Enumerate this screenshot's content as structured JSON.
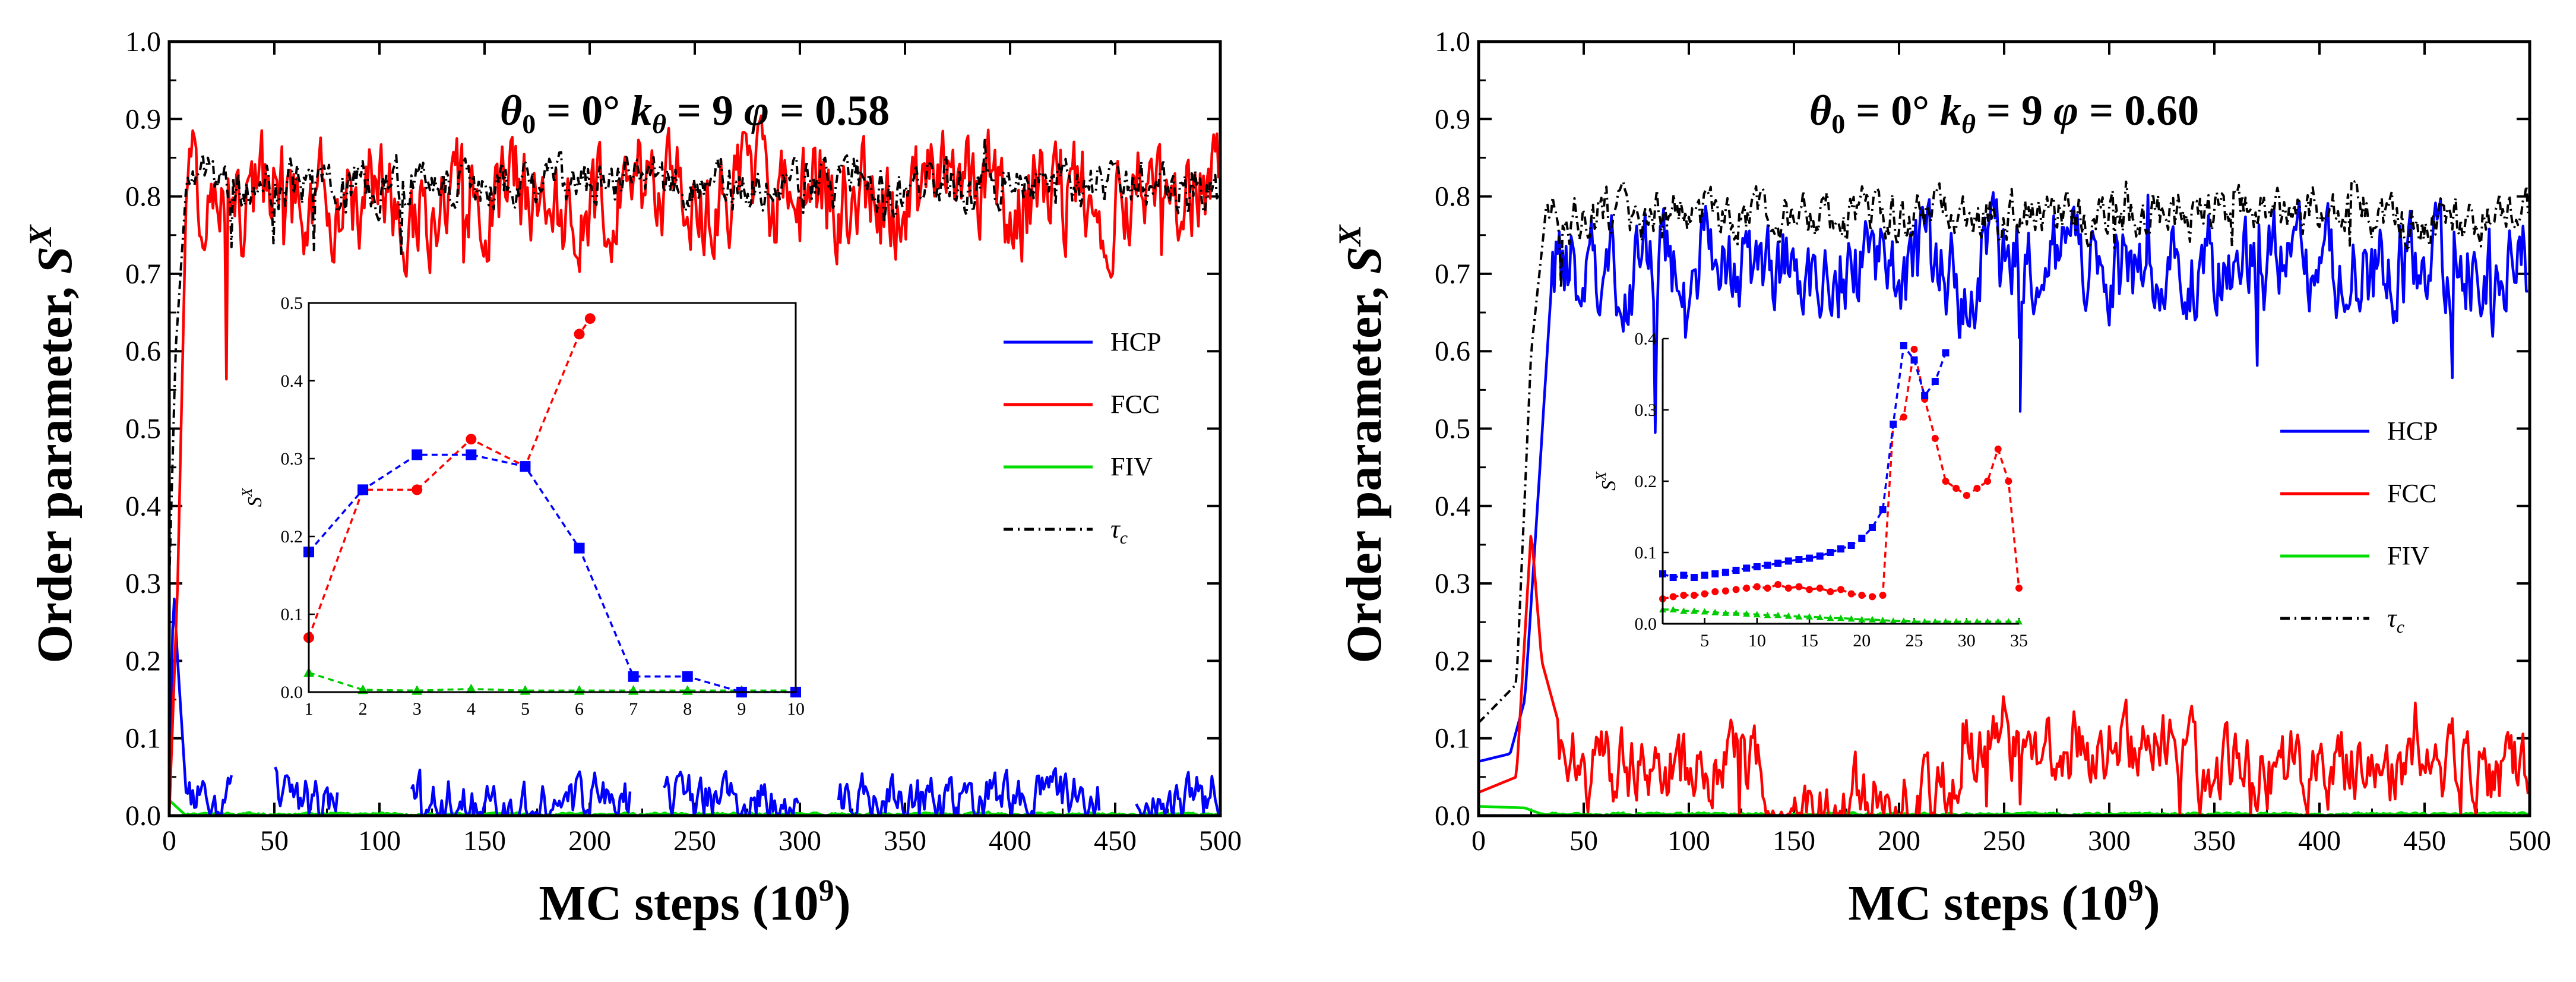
{
  "chart_data": [
    {
      "type": "line",
      "panel": "left",
      "title_parts": {
        "theta": "θ",
        "theta_sub": "0",
        "theta_eq": " = 0°",
        "k": "k",
        "k_sub": "θ",
        "k_eq": " = 9",
        "phi": "φ",
        "phi_eq": " = 0.58"
      },
      "xlabel": "MC steps (10",
      "xlabel_sup": "9",
      "xlabel_end": ")",
      "ylabel": "Order parameter, ",
      "ylabel_s": "S",
      "ylabel_sup": "X",
      "xlim": [
        0,
        500
      ],
      "ylim": [
        0,
        1.0
      ],
      "xticks": [
        "0",
        "50",
        "100",
        "150",
        "200",
        "250",
        "300",
        "350",
        "400",
        "450",
        "500"
      ],
      "yticks": [
        "0.0",
        "0.1",
        "0.2",
        "0.3",
        "0.4",
        "0.5",
        "0.6",
        "0.7",
        "0.8",
        "0.9",
        "1.0"
      ],
      "legend": [
        {
          "label": "HCP",
          "color": "#0000ff",
          "style": "solid"
        },
        {
          "label": "FCC",
          "color": "#ff0000",
          "style": "solid"
        },
        {
          "label": "FIV",
          "color": "#00dd00",
          "style": "solid"
        },
        {
          "label": "τ",
          "sub": "c",
          "color": "#000000",
          "style": "dashdot"
        }
      ],
      "series_profile": {
        "HCP": {
          "early": [
            [
              0,
              0.0
            ],
            [
              2,
              0.3
            ],
            [
              4,
              0.2
            ],
            [
              8,
              0.03
            ]
          ],
          "plateau": 0.02,
          "noise": 0.04,
          "gaps": [
            [
              30,
              50
            ],
            [
              80,
              115
            ],
            [
              220,
              235
            ],
            [
              300,
              318
            ],
            [
              443,
              460
            ]
          ]
        },
        "FCC": {
          "early": [
            [
              0,
              0.0
            ],
            [
              4,
              0.3
            ],
            [
              8,
              0.79
            ]
          ],
          "plateau": 0.8,
          "noise": 0.09
        },
        "FIV": {
          "early": [
            [
              0,
              0.02
            ],
            [
              8,
              0.0
            ]
          ],
          "plateau": 0.002,
          "noise": 0.002
        },
        "tau": {
          "early": [
            [
              0,
              0.3
            ],
            [
              3,
              0.6
            ],
            [
              8,
              0.81
            ]
          ],
          "plateau": 0.815,
          "noise": 0.04
        }
      },
      "inset": {
        "xlim": [
          1,
          10
        ],
        "ylim": [
          0,
          0.5
        ],
        "xticks": [
          "1",
          "2",
          "3",
          "4",
          "5",
          "6",
          "7",
          "8",
          "9",
          "10"
        ],
        "yticks": [
          "0.0",
          "0.1",
          "0.2",
          "0.3",
          "0.4",
          "0.5"
        ],
        "ylabel": "S",
        "ylabel_sup": "X",
        "series": [
          {
            "name": "HCP",
            "color": "#0000ff",
            "marker": "square",
            "x": [
              1,
              2,
              3,
              4,
              5,
              6,
              7,
              8,
              9,
              10
            ],
            "y": [
              0.18,
              0.26,
              0.305,
              0.305,
              0.29,
              0.185,
              0.02,
              0.02,
              0.0,
              0.0
            ]
          },
          {
            "name": "FCC",
            "color": "#ff0000",
            "marker": "circle",
            "x": [
              1,
              2,
              3,
              4,
              5,
              6,
              6.2
            ],
            "y": [
              0.07,
              0.26,
              0.26,
              0.325,
              0.29,
              0.46,
              0.48
            ]
          },
          {
            "name": "FIV",
            "color": "#00cc00",
            "marker": "triangle",
            "x": [
              1,
              2,
              3,
              4,
              5,
              6,
              7,
              8,
              9,
              10
            ],
            "y": [
              0.025,
              0.003,
              0.002,
              0.004,
              0.002,
              0.002,
              0.002,
              0.002,
              0.002,
              0.002
            ]
          }
        ]
      }
    },
    {
      "type": "line",
      "panel": "right",
      "title_parts": {
        "theta": "θ",
        "theta_sub": "0",
        "theta_eq": " = 0°",
        "k": "k",
        "k_sub": "θ",
        "k_eq": " = 9",
        "phi": "φ",
        "phi_eq": " = 0.60"
      },
      "xlabel": "MC steps (10",
      "xlabel_sup": "9",
      "xlabel_end": ")",
      "ylabel": "Order parameter, ",
      "ylabel_s": "S",
      "ylabel_sup": "X",
      "xlim": [
        0,
        500
      ],
      "ylim": [
        0,
        1.0
      ],
      "xticks": [
        "0",
        "50",
        "100",
        "150",
        "200",
        "250",
        "300",
        "350",
        "400",
        "450",
        "500"
      ],
      "yticks": [
        "0.0",
        "0.1",
        "0.2",
        "0.3",
        "0.4",
        "0.5",
        "0.6",
        "0.7",
        "0.8",
        "0.9",
        "1.0"
      ],
      "legend": [
        {
          "label": "HCP",
          "color": "#0000ff",
          "style": "solid"
        },
        {
          "label": "FCC",
          "color": "#ff0000",
          "style": "solid"
        },
        {
          "label": "FIV",
          "color": "#00dd00",
          "style": "solid"
        },
        {
          "label": "τ",
          "sub": "c",
          "color": "#000000",
          "style": "dashdot"
        }
      ],
      "series_profile": {
        "HCP": {
          "early": [
            [
              0,
              0.07
            ],
            [
              15,
              0.08
            ],
            [
              22,
              0.15
            ],
            [
              28,
              0.4
            ],
            [
              35,
              0.7
            ]
          ],
          "plateau": 0.71,
          "noise": 0.08
        },
        "FCC": {
          "early": [
            [
              0,
              0.03
            ],
            [
              18,
              0.05
            ],
            [
              25,
              0.37
            ],
            [
              30,
              0.2
            ],
            [
              38,
              0.12
            ]
          ],
          "plateau": 0.06,
          "noise": 0.06
        },
        "FIV": {
          "early": [
            [
              0,
              0.012
            ],
            [
              22,
              0.01
            ],
            [
              30,
              0.002
            ]
          ],
          "plateau": 0.002,
          "noise": 0.002
        },
        "tau": {
          "early": [
            [
              0,
              0.12
            ],
            [
              18,
              0.17
            ],
            [
              25,
              0.6
            ],
            [
              32,
              0.78
            ]
          ],
          "plateau": 0.775,
          "noise": 0.04
        }
      },
      "inset": {
        "xlim": [
          1,
          35
        ],
        "ylim": [
          0,
          0.4
        ],
        "xticks": [
          "5",
          "10",
          "15",
          "20",
          "25",
          "30",
          "35"
        ],
        "xtick_values": [
          5,
          10,
          15,
          20,
          25,
          30,
          35
        ],
        "yticks": [
          "0.0",
          "0.1",
          "0.2",
          "0.3",
          "0.4"
        ],
        "ylabel": "S",
        "ylabel_sup": "X",
        "series": [
          {
            "name": "HCP",
            "color": "#0000ff",
            "marker": "square",
            "x": [
              1,
              2,
              3,
              4,
              5,
              6,
              7,
              8,
              9,
              10,
              11,
              12,
              13,
              14,
              15,
              16,
              17,
              18,
              19,
              20,
              21,
              22,
              23,
              24,
              25,
              26,
              27,
              28
            ],
            "y": [
              0.07,
              0.065,
              0.068,
              0.065,
              0.068,
              0.07,
              0.072,
              0.075,
              0.078,
              0.08,
              0.082,
              0.085,
              0.088,
              0.09,
              0.092,
              0.095,
              0.1,
              0.105,
              0.11,
              0.12,
              0.135,
              0.16,
              0.28,
              0.39,
              0.37,
              0.32,
              0.34,
              0.38
            ]
          },
          {
            "name": "FCC",
            "color": "#ff0000",
            "marker": "circle",
            "x": [
              1,
              2,
              3,
              4,
              5,
              6,
              7,
              8,
              9,
              10,
              11,
              12,
              13,
              14,
              15,
              16,
              17,
              18,
              19,
              20,
              21,
              22,
              23,
              24,
              25,
              26,
              27,
              28,
              29,
              30,
              31,
              32,
              33,
              34,
              35
            ],
            "y": [
              0.035,
              0.038,
              0.04,
              0.04,
              0.042,
              0.045,
              0.046,
              0.048,
              0.05,
              0.052,
              0.05,
              0.055,
              0.05,
              0.052,
              0.048,
              0.05,
              0.045,
              0.048,
              0.042,
              0.04,
              0.038,
              0.04,
              0.28,
              0.29,
              0.385,
              0.315,
              0.26,
              0.2,
              0.19,
              0.18,
              0.19,
              0.2,
              0.245,
              0.2,
              0.05
            ]
          },
          {
            "name": "FIV",
            "color": "#00cc00",
            "marker": "triangle",
            "x": [
              1,
              2,
              3,
              4,
              5,
              6,
              7,
              8,
              9,
              10,
              11,
              12,
              13,
              14,
              15,
              16,
              17,
              18,
              19,
              20,
              21,
              22,
              23,
              24,
              25,
              26,
              27,
              28,
              29,
              30,
              31,
              32,
              33,
              34,
              35
            ],
            "y": [
              0.02,
              0.02,
              0.018,
              0.018,
              0.017,
              0.016,
              0.015,
              0.015,
              0.014,
              0.013,
              0.012,
              0.012,
              0.011,
              0.01,
              0.01,
              0.009,
              0.008,
              0.008,
              0.007,
              0.006,
              0.006,
              0.005,
              0.004,
              0.004,
              0.003,
              0.003,
              0.003,
              0.003,
              0.003,
              0.003,
              0.003,
              0.003,
              0.003,
              0.003,
              0.003
            ]
          }
        ]
      }
    }
  ]
}
